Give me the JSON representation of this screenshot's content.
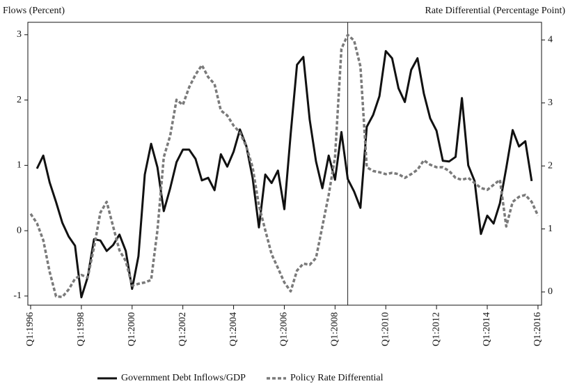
{
  "chart_data": {
    "type": "line",
    "y_label": "Flows (Percent)",
    "y2_label": "Rate Differential (Percentage Point)",
    "xlim": [
      1995.89,
      2016.14
    ],
    "xticks": [
      {
        "value": 1996,
        "label": "Q1:1996"
      },
      {
        "value": 1998,
        "label": "Q1:1998"
      },
      {
        "value": 2000,
        "label": "Q1:2000"
      },
      {
        "value": 2002,
        "label": "Q1:2002"
      },
      {
        "value": 2004,
        "label": "Q1:2004"
      },
      {
        "value": 2006,
        "label": "Q1:2006"
      },
      {
        "value": 2008,
        "label": "Q1:2008"
      },
      {
        "value": 2010,
        "label": "Q1:2010"
      },
      {
        "value": 2012,
        "label": "Q1:2012"
      },
      {
        "value": 2014,
        "label": "Q1:2014"
      },
      {
        "value": 2016,
        "label": "Q1:2016"
      }
    ],
    "ylim": [
      -1.14,
      3.19
    ],
    "yticks": [
      -1,
      0,
      1,
      2,
      3
    ],
    "y2lim": [
      -0.21,
      4.28
    ],
    "y2ticks": [
      0,
      1,
      2,
      3,
      4
    ],
    "vline_x": 2008.5,
    "series": [
      {
        "name": "Government Debt Inflows/GDP",
        "color": "#111111",
        "dash": false,
        "x": [
          1996.25,
          1996.5,
          1996.75,
          1997,
          1997.25,
          1997.5,
          1997.75,
          1998,
          1998.25,
          1998.5,
          1998.75,
          1999,
          1999.25,
          1999.5,
          1999.75,
          2000,
          2000.25,
          2000.5,
          2000.75,
          2001,
          2001.25,
          2001.5,
          2001.75,
          2002,
          2002.25,
          2002.5,
          2002.75,
          2003,
          2003.25,
          2003.5,
          2003.75,
          2004,
          2004.25,
          2004.5,
          2004.75,
          2005,
          2005.25,
          2005.5,
          2005.75,
          2006,
          2006.25,
          2006.5,
          2006.75,
          2007,
          2007.25,
          2007.5,
          2007.75,
          2008,
          2008.25,
          2008.5,
          2008.75,
          2009,
          2009.25,
          2009.5,
          2009.75,
          2010,
          2010.25,
          2010.5,
          2010.75,
          2011,
          2011.25,
          2011.5,
          2011.75,
          2012,
          2012.25,
          2012.5,
          2012.75,
          2013,
          2013.25,
          2013.5,
          2013.75,
          2014,
          2014.25,
          2014.5,
          2014.75,
          2015,
          2015.25,
          2015.5,
          2015.75
        ],
        "values": [
          0.95,
          1.15,
          0.74,
          0.44,
          0.12,
          -0.09,
          -0.23,
          -1.02,
          -0.71,
          -0.13,
          -0.15,
          -0.31,
          -0.22,
          -0.06,
          -0.31,
          -0.89,
          -0.39,
          0.86,
          1.33,
          0.97,
          0.3,
          0.65,
          1.05,
          1.24,
          1.24,
          1.1,
          0.77,
          0.81,
          0.62,
          1.17,
          0.98,
          1.21,
          1.55,
          1.3,
          0.81,
          0.05,
          0.86,
          0.73,
          0.92,
          0.33,
          1.48,
          2.54,
          2.66,
          1.7,
          1.06,
          0.65,
          1.15,
          0.78,
          1.51,
          0.79,
          0.6,
          0.35,
          1.59,
          1.77,
          2.06,
          2.75,
          2.64,
          2.18,
          1.97,
          2.46,
          2.64,
          2.1,
          1.72,
          1.53,
          1.07,
          1.06,
          1.13,
          2.03,
          1.0,
          0.76,
          -0.05,
          0.23,
          0.11,
          0.42,
          0.96,
          1.54,
          1.29,
          1.37,
          0.76
        ]
      },
      {
        "name": "Policy Rate Differential",
        "color": "#7a7a7a",
        "dash": true,
        "axis": "y2",
        "x": [
          1996,
          1996.25,
          1996.5,
          1996.75,
          1997,
          1997.25,
          1997.5,
          1997.75,
          1998,
          1998.25,
          1998.5,
          1998.75,
          1999,
          1999.25,
          1999.5,
          1999.75,
          2000,
          2000.25,
          2000.5,
          2000.75,
          2001,
          2001.25,
          2001.5,
          2001.75,
          2002,
          2002.25,
          2002.5,
          2002.75,
          2003,
          2003.25,
          2003.5,
          2003.75,
          2004,
          2004.25,
          2004.5,
          2004.75,
          2005,
          2005.25,
          2005.5,
          2005.75,
          2006,
          2006.25,
          2006.5,
          2006.75,
          2007,
          2007.25,
          2007.5,
          2007.75,
          2008,
          2008.25,
          2008.5,
          2008.75,
          2009,
          2009.25,
          2009.5,
          2009.75,
          2010,
          2010.25,
          2010.5,
          2010.75,
          2011,
          2011.25,
          2011.5,
          2011.75,
          2012,
          2012.25,
          2012.5,
          2012.75,
          2013,
          2013.25,
          2013.5,
          2013.75,
          2014,
          2014.25,
          2014.5,
          2014.75,
          2015,
          2015.25,
          2015.5,
          2015.75,
          2016
        ],
        "values": [
          1.24,
          1.09,
          0.82,
          0.32,
          -0.07,
          -0.08,
          0.04,
          0.21,
          0.27,
          0.23,
          0.71,
          1.26,
          1.43,
          1.04,
          0.66,
          0.49,
          0.1,
          0.13,
          0.15,
          0.19,
          0.98,
          2.14,
          2.48,
          3.05,
          2.97,
          3.25,
          3.45,
          3.6,
          3.41,
          3.3,
          2.88,
          2.8,
          2.64,
          2.53,
          2.31,
          1.98,
          1.37,
          0.98,
          0.6,
          0.38,
          0.15,
          0.01,
          0.34,
          0.45,
          0.43,
          0.54,
          1.04,
          1.54,
          2.14,
          3.86,
          4.08,
          3.99,
          3.58,
          1.98,
          1.92,
          1.9,
          1.87,
          1.89,
          1.87,
          1.81,
          1.87,
          1.94,
          2.09,
          2.02,
          1.98,
          1.98,
          1.92,
          1.81,
          1.78,
          1.81,
          1.73,
          1.65,
          1.62,
          1.7,
          1.78,
          1.04,
          1.43,
          1.51,
          1.54,
          1.43,
          1.21
        ]
      }
    ]
  }
}
